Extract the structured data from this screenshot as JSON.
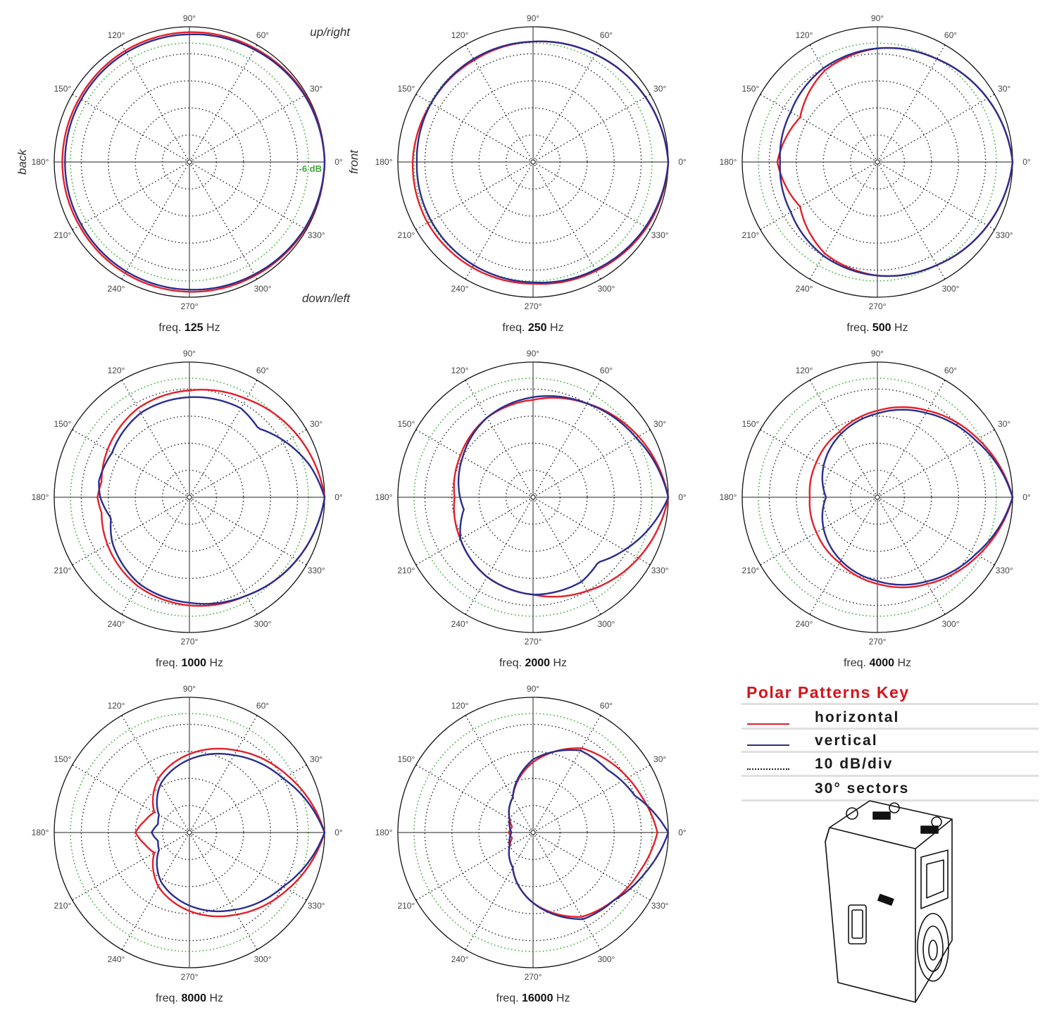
{
  "labels": {
    "angle_labels": [
      "0°",
      "30°",
      "60°",
      "90°",
      "120°",
      "150°",
      "180°",
      "210°",
      "240°",
      "270°",
      "300°",
      "330°"
    ],
    "up_right": "up/right",
    "down_left": "down/left",
    "back": "back",
    "front": "front",
    "minus6": "-6 dB",
    "freq_prefix": "freq.",
    "unit": "Hz"
  },
  "colors": {
    "horizontal": "#e3202a",
    "vertical": "#2b2e8e",
    "minus6": "#3aa935",
    "grid": "#222222"
  },
  "key": {
    "title": "Polar Patterns Key",
    "rows": [
      {
        "label": "horizontal",
        "swatch": "red-line"
      },
      {
        "label": "vertical",
        "swatch": "blue-line"
      },
      {
        "label": "10 dB/div",
        "swatch": "dotted-line"
      },
      {
        "label": "30° sectors",
        "swatch": "none"
      }
    ]
  },
  "speaker_image": {
    "icon": "loudspeaker-cabinet-illustration"
  },
  "chart_data": [
    {
      "type": "polar",
      "freq": "125",
      "rlim": [
        -50,
        0
      ],
      "rings_db": [
        -10,
        -20,
        -30,
        -40
      ],
      "series": [
        {
          "name": "horizontal",
          "angles": [
            0,
            30,
            60,
            90,
            120,
            150,
            180,
            210,
            240,
            270,
            300,
            330
          ],
          "values": [
            0,
            -0.5,
            -1.5,
            -2,
            -2.5,
            -3,
            -3,
            -3,
            -2.5,
            -2,
            -1.5,
            -0.5
          ]
        },
        {
          "name": "vertical",
          "angles": [
            0,
            30,
            60,
            90,
            120,
            150,
            180,
            210,
            240,
            270,
            300,
            330
          ],
          "values": [
            0,
            -0.8,
            -2,
            -2.8,
            -3.3,
            -3.8,
            -4,
            -3.8,
            -3.3,
            -2.8,
            -2,
            -0.8
          ]
        }
      ]
    },
    {
      "type": "polar",
      "freq": "250",
      "rlim": [
        -50,
        0
      ],
      "rings_db": [
        -10,
        -20,
        -30,
        -40
      ],
      "series": [
        {
          "name": "horizontal",
          "angles": [
            0,
            30,
            60,
            90,
            120,
            150,
            180,
            210,
            240,
            270,
            300,
            330
          ],
          "values": [
            0,
            -2,
            -4,
            -5.5,
            -6.5,
            -6.5,
            -5.5,
            -5,
            -5,
            -5,
            -3.5,
            -1.5
          ]
        },
        {
          "name": "vertical",
          "angles": [
            0,
            30,
            60,
            90,
            120,
            150,
            180,
            210,
            240,
            270,
            300,
            330
          ],
          "values": [
            0,
            -2,
            -4,
            -5.5,
            -6,
            -6.5,
            -7,
            -6.5,
            -6,
            -5.5,
            -4,
            -2
          ]
        }
      ]
    },
    {
      "type": "polar",
      "freq": "500",
      "rlim": [
        -50,
        0
      ],
      "rings_db": [
        -10,
        -20,
        -30,
        -40
      ],
      "series": [
        {
          "name": "horizontal",
          "angles": [
            0,
            30,
            60,
            90,
            120,
            150,
            165,
            180,
            195,
            210,
            240,
            270,
            300,
            330
          ],
          "values": [
            0,
            -3,
            -6,
            -8,
            -11,
            -17,
            -15,
            -13,
            -15,
            -17,
            -11,
            -8,
            -6,
            -3
          ]
        },
        {
          "name": "vertical",
          "angles": [
            0,
            30,
            60,
            90,
            120,
            150,
            180,
            210,
            240,
            270,
            300,
            330
          ],
          "values": [
            0,
            -3,
            -6,
            -8,
            -10,
            -13,
            -14,
            -13,
            -10,
            -8,
            -6,
            -3
          ]
        }
      ]
    },
    {
      "type": "polar",
      "freq": "1000",
      "rlim": [
        -50,
        0
      ],
      "rings_db": [
        -10,
        -20,
        -30,
        -40
      ],
      "series": [
        {
          "name": "horizontal",
          "angles": [
            0,
            30,
            60,
            90,
            120,
            150,
            170,
            180,
            190,
            210,
            240,
            270,
            300,
            330
          ],
          "values": [
            0,
            -4,
            -8,
            -10.5,
            -12,
            -15,
            -17,
            -16,
            -17,
            -15,
            -12,
            -10,
            -8,
            -4
          ]
        },
        {
          "name": "vertical",
          "angles": [
            0,
            15,
            30,
            45,
            60,
            90,
            120,
            150,
            170,
            180,
            195,
            210,
            240,
            270,
            300,
            330
          ],
          "values": [
            0,
            -4,
            -9,
            -14,
            -12,
            -13,
            -14,
            -17,
            -16,
            -17,
            -20,
            -17,
            -13,
            -11,
            -8,
            -4
          ]
        }
      ]
    },
    {
      "type": "polar",
      "freq": "2000",
      "rlim": [
        -50,
        0
      ],
      "rings_db": [
        -10,
        -20,
        -30,
        -40
      ],
      "series": [
        {
          "name": "horizontal",
          "angles": [
            0,
            30,
            60,
            90,
            120,
            150,
            180,
            210,
            240,
            270,
            300,
            330
          ],
          "values": [
            0,
            -5,
            -10,
            -14,
            -16,
            -19,
            -21,
            -19,
            -16,
            -14,
            -10,
            -5
          ]
        },
        {
          "name": "vertical",
          "angles": [
            0,
            30,
            60,
            90,
            120,
            150,
            170,
            180,
            190,
            210,
            240,
            270,
            300,
            315,
            330
          ],
          "values": [
            0,
            -6,
            -10,
            -13,
            -16,
            -20,
            -22,
            -23,
            -24,
            -19,
            -16,
            -14,
            -14,
            -16,
            -11
          ]
        }
      ]
    },
    {
      "type": "polar",
      "freq": "4000",
      "rlim": [
        -50,
        0
      ],
      "rings_db": [
        -10,
        -20,
        -30,
        -40
      ],
      "series": [
        {
          "name": "horizontal",
          "angles": [
            0,
            30,
            60,
            90,
            120,
            150,
            180,
            210,
            240,
            270,
            300,
            330
          ],
          "values": [
            0,
            -7,
            -13,
            -18,
            -22,
            -24,
            -25,
            -24,
            -22,
            -18,
            -13,
            -7
          ]
        },
        {
          "name": "vertical",
          "angles": [
            0,
            30,
            60,
            90,
            120,
            150,
            180,
            210,
            240,
            270,
            300,
            330
          ],
          "values": [
            0,
            -8,
            -14,
            -19,
            -23,
            -27,
            -31,
            -27,
            -23,
            -19,
            -14,
            -8
          ]
        }
      ]
    },
    {
      "type": "polar",
      "freq": "8000",
      "rlim": [
        -50,
        0
      ],
      "rings_db": [
        -10,
        -20,
        -30,
        -40
      ],
      "series": [
        {
          "name": "horizontal",
          "angles": [
            0,
            30,
            60,
            90,
            120,
            150,
            165,
            180,
            195,
            210,
            240,
            270,
            300,
            330
          ],
          "values": [
            0,
            -8,
            -15,
            -21,
            -27,
            -35,
            -33,
            -30,
            -33,
            -35,
            -27,
            -21,
            -15,
            -8
          ]
        },
        {
          "name": "vertical",
          "angles": [
            0,
            30,
            60,
            90,
            120,
            150,
            165,
            180,
            195,
            210,
            240,
            270,
            300,
            330
          ],
          "values": [
            0,
            -10,
            -17,
            -23,
            -29,
            -37,
            -38,
            -36,
            -38,
            -37,
            -29,
            -23,
            -17,
            -10
          ]
        }
      ]
    },
    {
      "type": "polar",
      "freq": "16000",
      "rlim": [
        -50,
        0
      ],
      "rings_db": [
        -10,
        -20,
        -30,
        -40
      ],
      "series": [
        {
          "name": "horizontal",
          "angles": [
            0,
            20,
            40,
            60,
            90,
            120,
            150,
            165,
            180,
            195,
            210,
            240,
            270,
            300,
            320,
            340
          ],
          "values": [
            -4,
            -8,
            -11,
            -14,
            -24,
            -35,
            -40,
            -42,
            -41,
            -42,
            -40,
            -35,
            -24,
            -14,
            -11,
            -8
          ]
        },
        {
          "name": "vertical",
          "angles": [
            0,
            20,
            40,
            60,
            90,
            120,
            150,
            165,
            180,
            195,
            210,
            240,
            270,
            300,
            320,
            340
          ],
          "values": [
            0,
            -10,
            -14,
            -15,
            -23,
            -35,
            -40,
            -41,
            -42,
            -41,
            -40,
            -35,
            -24,
            -13,
            -11,
            -6
          ]
        }
      ]
    }
  ]
}
